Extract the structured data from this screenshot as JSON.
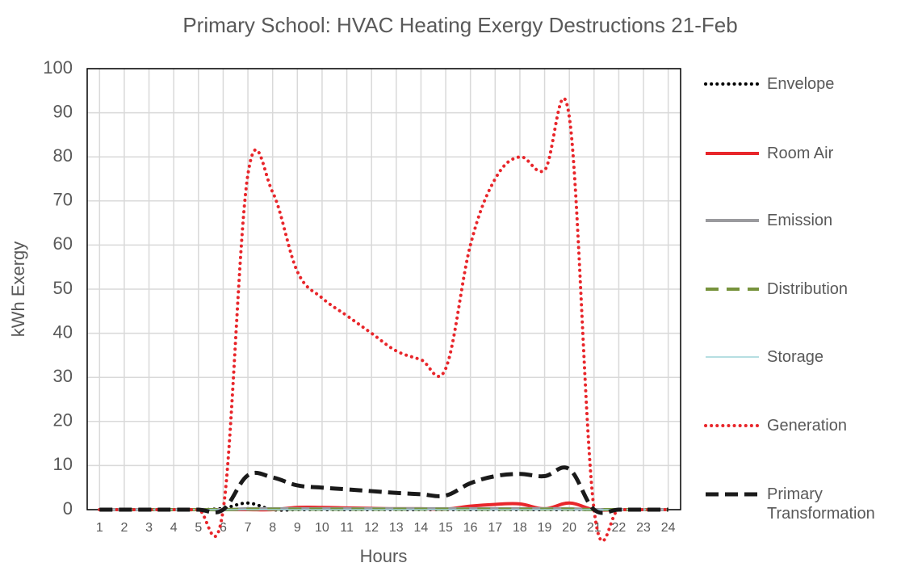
{
  "chart_data": {
    "type": "line",
    "title": "Primary School: HVAC Heating Exergy Destructions 21-Feb",
    "x_label": "Hours",
    "y_label": "kWh Exergy",
    "categories": [
      "1",
      "2",
      "3",
      "4",
      "5",
      "6",
      "7",
      "8",
      "9",
      "10",
      "11",
      "12",
      "13",
      "14",
      "15",
      "16",
      "17",
      "18",
      "19",
      "20",
      "21",
      "22",
      "23",
      "24"
    ],
    "ylim": [
      0,
      100
    ],
    "yticks": [
      0,
      10,
      20,
      30,
      40,
      50,
      60,
      70,
      80,
      90,
      100
    ],
    "grid": true,
    "legend": "right",
    "series": [
      {
        "name": "Envelope",
        "color": "#000000",
        "style": "dotted",
        "values": [
          0,
          0,
          0,
          0,
          0,
          0.3,
          1.5,
          0,
          0,
          0,
          0,
          0,
          0,
          0,
          0,
          0,
          0,
          0,
          0,
          0,
          0,
          0,
          0,
          0
        ]
      },
      {
        "name": "Room Air",
        "color": "#e8262b",
        "style": "solid",
        "values": [
          0,
          0,
          0,
          0,
          0,
          0,
          0,
          0,
          0.5,
          0.5,
          0.4,
          0.3,
          0.2,
          0.2,
          0.1,
          0.8,
          1.2,
          1.3,
          0.2,
          1.5,
          0,
          0,
          0,
          0
        ]
      },
      {
        "name": "Emission",
        "color": "#9a9a9e",
        "style": "solid",
        "values": [
          0,
          0,
          0,
          0,
          0,
          0,
          0.2,
          0.2,
          0.2,
          0.2,
          0.2,
          0.2,
          0.2,
          0.2,
          0.2,
          0.2,
          0.2,
          0.2,
          0.2,
          0.2,
          0,
          0,
          0,
          0
        ]
      },
      {
        "name": "Distribution",
        "color": "#77933c",
        "style": "dashed",
        "values": [
          0,
          0,
          0,
          0,
          0,
          0,
          0.1,
          0.1,
          0.1,
          0.1,
          0.1,
          0.1,
          0.1,
          0.1,
          0.1,
          0.1,
          0.1,
          0.1,
          0.1,
          0.1,
          0,
          0,
          0,
          0
        ]
      },
      {
        "name": "Storage",
        "color": "#9dd3d8",
        "style": "thin",
        "values": [
          0,
          0,
          0,
          0,
          0,
          0,
          0,
          0,
          0,
          0,
          0,
          0,
          0,
          0,
          0,
          0,
          0,
          0,
          0,
          0,
          0,
          0,
          0,
          0
        ]
      },
      {
        "name": "Generation",
        "color": "#e8262b",
        "style": "dotted",
        "values": [
          0,
          0,
          0,
          0,
          0,
          0,
          76,
          72,
          54,
          48,
          44,
          40,
          36,
          34,
          32,
          60,
          75,
          80,
          77,
          89,
          0,
          0,
          0,
          0
        ]
      },
      {
        "name": "Primary Transformation",
        "color": "#1a1a1a",
        "style": "dashed-bold",
        "values": [
          0,
          0,
          0,
          0,
          0,
          0,
          7.8,
          7.3,
          5.5,
          5,
          4.6,
          4.2,
          3.8,
          3.5,
          3.2,
          6,
          7.6,
          8.1,
          7.6,
          9.2,
          0,
          0,
          0,
          0
        ]
      }
    ]
  }
}
